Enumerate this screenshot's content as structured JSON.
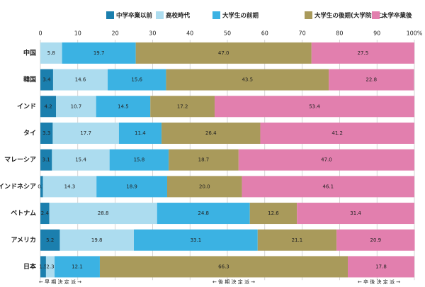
{
  "chart_data": {
    "type": "stacked-bar-horizontal",
    "categories": [
      "中国",
      "韓国",
      "インド",
      "タイ",
      "マレーシア",
      "インドネシア",
      "ベトナム",
      "アメリカ",
      "日本"
    ],
    "series": [
      {
        "name": "中学卒業以前",
        "color": "#1b7fae",
        "values": [
          0,
          3.4,
          4.2,
          3.3,
          3.1,
          0.7,
          2.4,
          5.2,
          1.5
        ],
        "value_labels": [
          null,
          "3.4",
          "4.2",
          "3.3",
          "3.1",
          "0.7",
          "2.4",
          "5.2",
          "1.5"
        ]
      },
      {
        "name": "高校時代",
        "color": "#acdcef",
        "values": [
          5.8,
          14.6,
          10.7,
          17.7,
          15.4,
          14.3,
          28.8,
          19.8,
          2.3
        ],
        "value_labels": [
          "5.8",
          "14.6",
          "10.7",
          "17.7",
          "15.4",
          "14.3",
          "28.8",
          "19.8",
          "2.3"
        ]
      },
      {
        "name": "大学生の前期",
        "color": "#3bb2e3",
        "values": [
          19.7,
          15.6,
          14.5,
          11.4,
          15.8,
          18.9,
          24.8,
          33.1,
          12.1
        ],
        "value_labels": [
          "19.7",
          "15.6",
          "14.5",
          "11.4",
          "15.8",
          "18.9",
          "24.8",
          "33.1",
          "12.1"
        ]
      },
      {
        "name": "大学生の後期(大学院含む)",
        "color": "#a99a5b",
        "values": [
          47.0,
          43.5,
          17.2,
          26.4,
          18.7,
          20.0,
          12.6,
          21.1,
          66.3
        ],
        "value_labels": [
          "47.0",
          "43.5",
          "17.2",
          "26.4",
          "18.7",
          "20.0",
          "12.6",
          "21.1",
          "66.3"
        ]
      },
      {
        "name": "大学卒業後",
        "color": "#e27fae",
        "values": [
          27.5,
          22.8,
          53.4,
          41.2,
          47.0,
          46.1,
          31.4,
          20.9,
          17.8
        ],
        "value_labels": [
          "27.5",
          "22.8",
          "53.4",
          "41.2",
          "47.0",
          "46.1",
          "31.4",
          "20.9",
          "17.8"
        ]
      }
    ],
    "xlim": [
      0,
      100
    ],
    "xticks": [
      0,
      10,
      20,
      30,
      40,
      50,
      60,
      70,
      80,
      90,
      {
        "value": 100,
        "label": "100%"
      }
    ],
    "grid": true,
    "annotations": [
      "← 早 期 決 定 派 →",
      "← 後 期 決 定 派 →",
      "← 卒 後 決 定 派 →"
    ]
  }
}
